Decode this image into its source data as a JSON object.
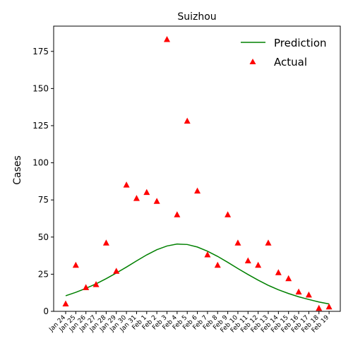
{
  "chart_data": {
    "type": "line",
    "title": "Suizhou",
    "xlabel": "",
    "ylabel": "Cases",
    "ylim": [
      0,
      192
    ],
    "yticks": [
      0,
      25,
      50,
      75,
      100,
      125,
      150,
      175
    ],
    "grid": false,
    "legend_position": "top-right",
    "categories": [
      "Jan 24",
      "Jan 25",
      "Jan 26",
      "Jan 27",
      "Jan 28",
      "Jan 29",
      "Jan 30",
      "Jan 31",
      "Feb 1",
      "Feb 2",
      "Feb 3",
      "Feb 4",
      "Feb 5",
      "Feb 6",
      "Feb 7",
      "Feb 8",
      "Feb 9",
      "Feb 10",
      "Feb 11",
      "Feb 12",
      "Feb 13",
      "Feb 14",
      "Feb 15",
      "Feb 16",
      "Feb 17",
      "Feb 18",
      "Feb 19"
    ],
    "series": [
      {
        "name": "Prediction",
        "kind": "line",
        "color": "#008000",
        "values": [
          10.5,
          12.8,
          15.5,
          18.5,
          22.0,
          25.8,
          29.8,
          34.0,
          38.0,
          41.5,
          44.0,
          45.3,
          45.0,
          43.3,
          40.5,
          37.0,
          33.0,
          28.8,
          24.8,
          21.0,
          17.5,
          14.5,
          12.0,
          9.8,
          8.0,
          6.3,
          5.0
        ]
      },
      {
        "name": "Actual",
        "kind": "scatter",
        "marker": "triangle",
        "color": "#ff0000",
        "values": [
          5,
          31,
          16,
          18,
          46,
          27,
          85,
          76,
          80,
          74,
          183,
          65,
          128,
          81,
          38,
          31,
          65,
          46,
          34,
          31,
          46,
          26,
          22,
          13,
          11,
          2,
          3
        ]
      }
    ]
  }
}
